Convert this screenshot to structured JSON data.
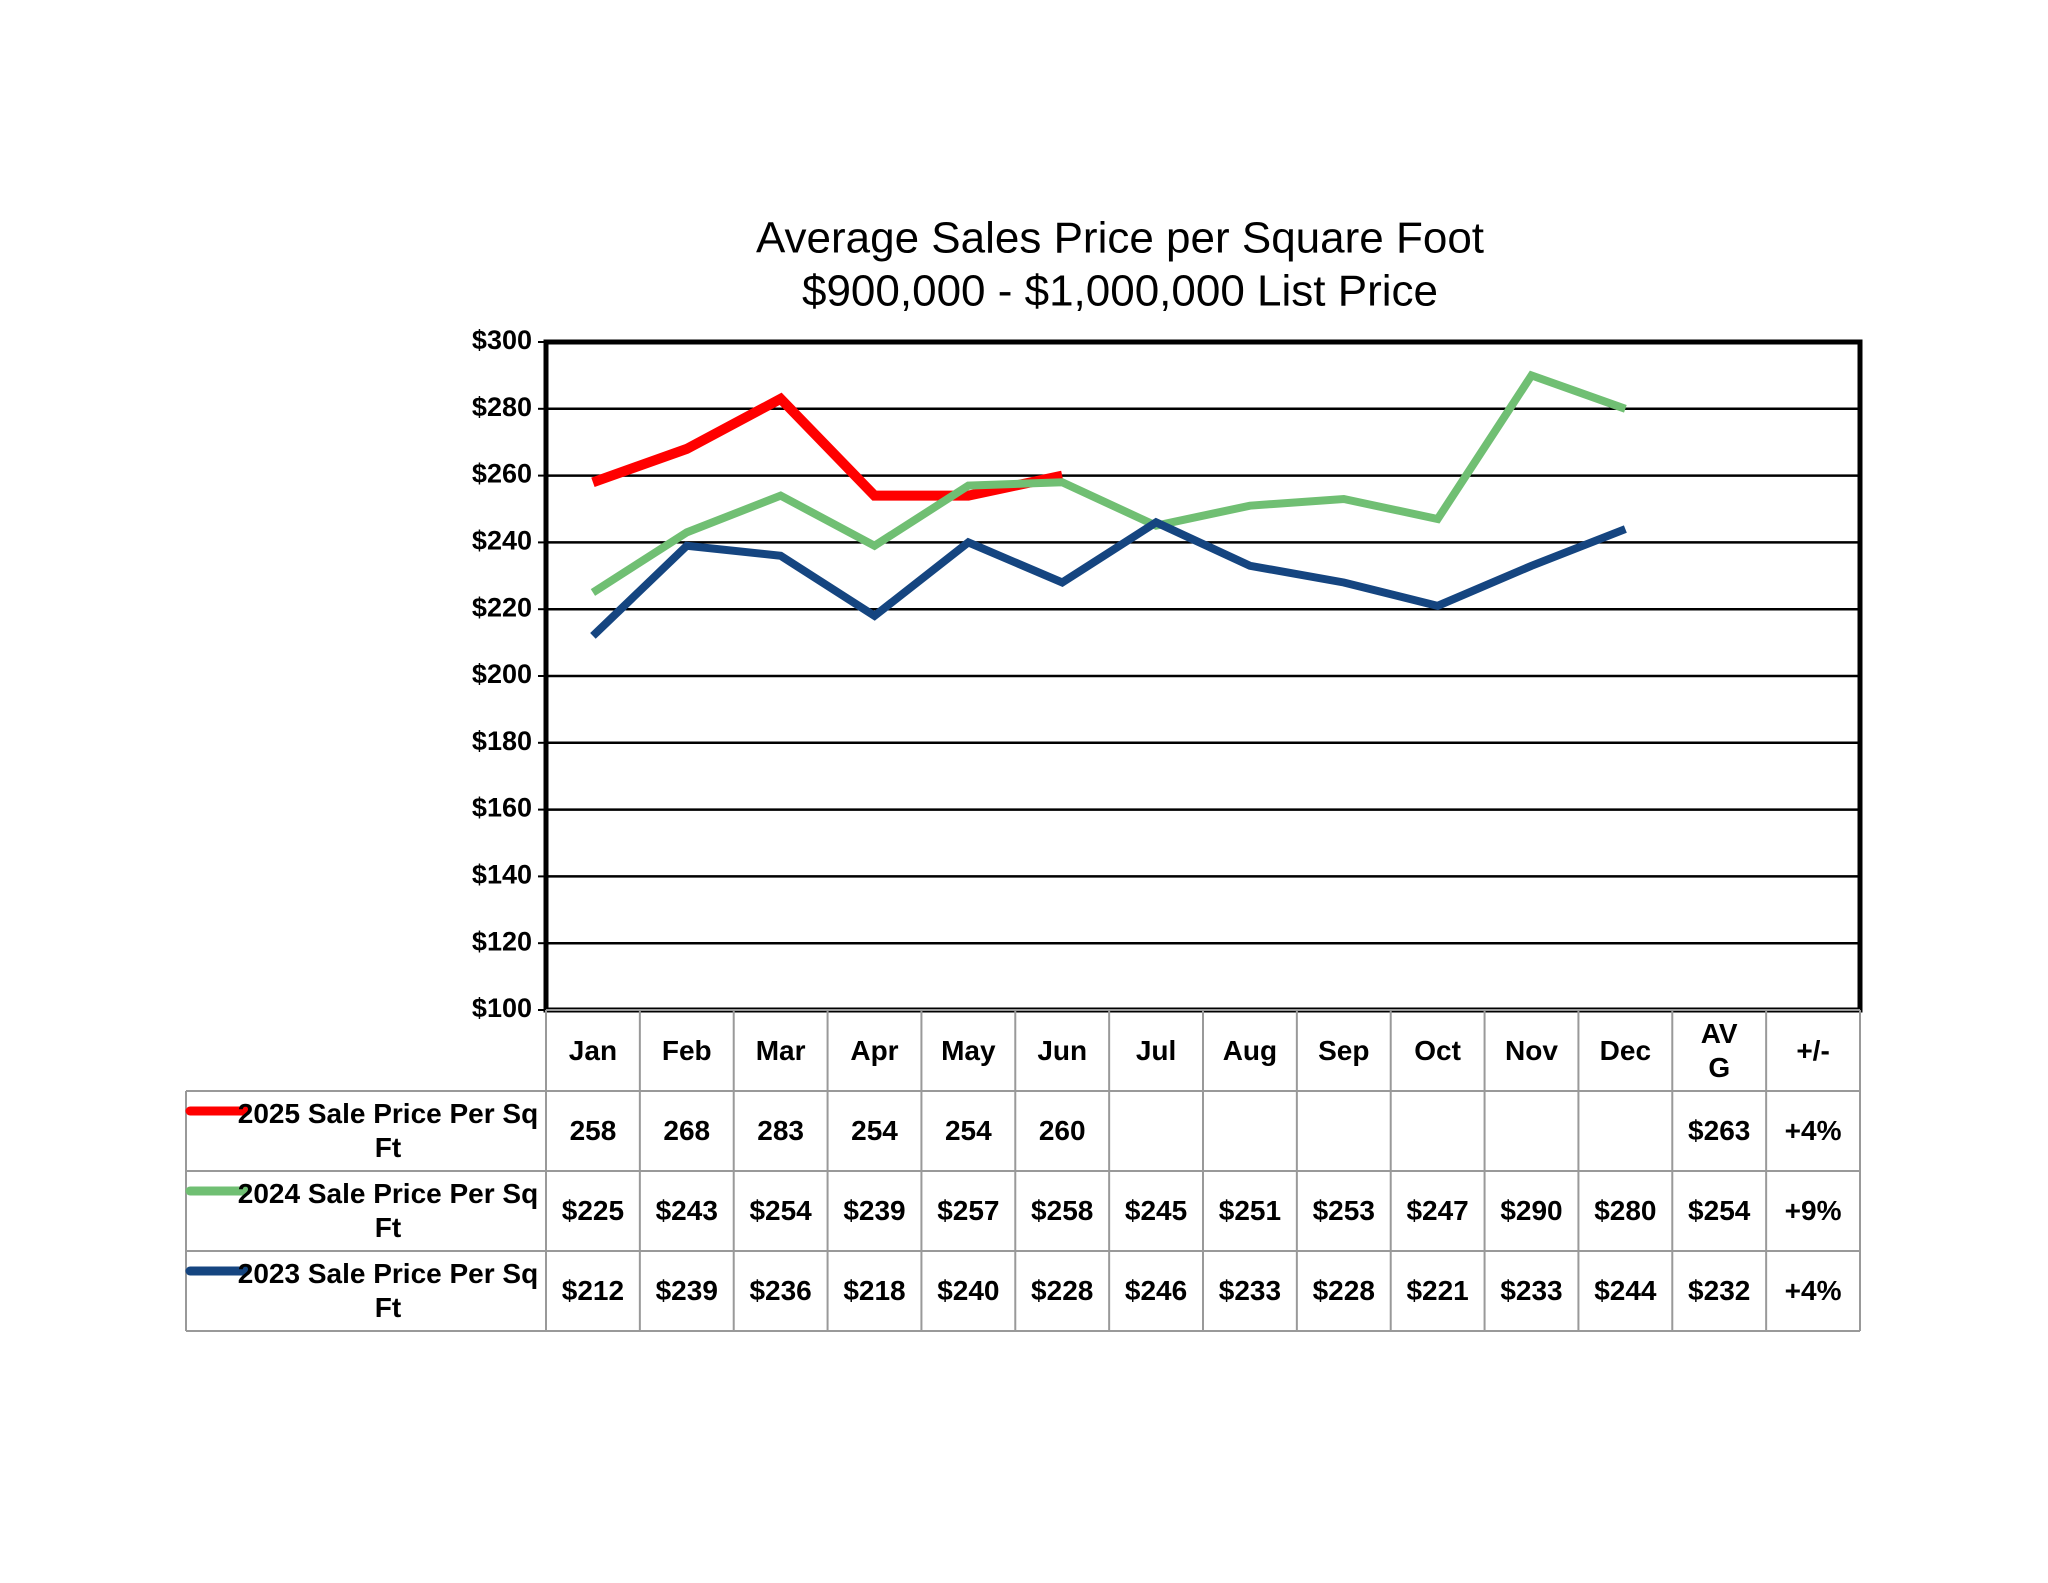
{
  "chart_data": {
    "type": "line",
    "title": "Average Sales Price per Square Foot",
    "subtitle": "$900,000 - $1,000,000 List Price",
    "categories": [
      "Jan",
      "Feb",
      "Mar",
      "Apr",
      "May",
      "Jun",
      "Jul",
      "Aug",
      "Sep",
      "Oct",
      "Nov",
      "Dec"
    ],
    "table_headers": [
      "AVG",
      "+/-"
    ],
    "series": [
      {
        "name": "2025 Sale Price Per Sq Ft",
        "color": "#ff0000",
        "values": [
          258,
          268,
          283,
          254,
          254,
          260,
          null,
          null,
          null,
          null,
          null,
          null
        ],
        "avg": "$263",
        "change": "+4%"
      },
      {
        "name": "2024 Sale Price Per Sq Ft",
        "color": "#70bf73",
        "values": [
          225,
          243,
          254,
          239,
          257,
          258,
          245,
          251,
          253,
          247,
          290,
          280
        ],
        "value_labels": [
          "$225",
          "$243",
          "$254",
          "$239",
          "$257",
          "$258",
          "$245",
          "$251",
          "$253",
          "$247",
          "$290",
          "$280"
        ],
        "avg": "$254",
        "change": "+9%"
      },
      {
        "name": "2023 Sale Price Per Sq Ft",
        "color": "#154580",
        "values": [
          212,
          239,
          236,
          218,
          240,
          228,
          246,
          233,
          228,
          221,
          233,
          244
        ],
        "value_labels": [
          "$212",
          "$239",
          "$236",
          "$218",
          "$240",
          "$228",
          "$246",
          "$233",
          "$228",
          "$221",
          "$233",
          "$244"
        ],
        "avg": "$232",
        "change": "+4%"
      }
    ],
    "ylim": [
      100,
      300
    ],
    "yticks": [
      {
        "value": 100,
        "label": "$100"
      },
      {
        "value": 120,
        "label": "$120"
      },
      {
        "value": 140,
        "label": "$140"
      },
      {
        "value": 160,
        "label": "$160"
      },
      {
        "value": 180,
        "label": "$180"
      },
      {
        "value": 200,
        "label": "$200"
      },
      {
        "value": 220,
        "label": "$220"
      },
      {
        "value": 240,
        "label": "$240"
      },
      {
        "value": 260,
        "label": "$260"
      },
      {
        "value": 280,
        "label": "$280"
      },
      {
        "value": 300,
        "label": "$300"
      }
    ],
    "grid": true
  }
}
